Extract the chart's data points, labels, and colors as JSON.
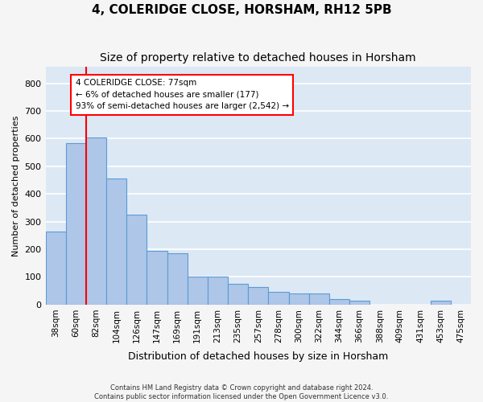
{
  "title": "4, COLERIDGE CLOSE, HORSHAM, RH12 5PB",
  "subtitle": "Size of property relative to detached houses in Horsham",
  "xlabel": "Distribution of detached houses by size in Horsham",
  "ylabel": "Number of detached properties",
  "footer_line1": "Contains HM Land Registry data © Crown copyright and database right 2024.",
  "footer_line2": "Contains public sector information licensed under the Open Government Licence v3.0.",
  "bins": [
    "38sqm",
    "60sqm",
    "82sqm",
    "104sqm",
    "126sqm",
    "147sqm",
    "169sqm",
    "191sqm",
    "213sqm",
    "235sqm",
    "257sqm",
    "278sqm",
    "300sqm",
    "322sqm",
    "344sqm",
    "366sqm",
    "388sqm",
    "409sqm",
    "431sqm",
    "453sqm",
    "475sqm"
  ],
  "bar_values": [
    265,
    585,
    605,
    455,
    325,
    195,
    185,
    100,
    100,
    75,
    65,
    45,
    40,
    40,
    20,
    15,
    0,
    0,
    0,
    15,
    0
  ],
  "bar_color": "#aec6e8",
  "bar_edge_color": "#5b9bd5",
  "red_line_label": "4 COLERIDGE CLOSE: 77sqm",
  "annotation_line2": "← 6% of detached houses are smaller (177)",
  "annotation_line3": "93% of semi-detached houses are larger (2,542) →",
  "ylim": [
    0,
    860
  ],
  "yticks": [
    0,
    100,
    200,
    300,
    400,
    500,
    600,
    700,
    800
  ],
  "background_color": "#dde8f5",
  "grid_color": "#ffffff",
  "title_fontsize": 11,
  "subtitle_fontsize": 10
}
